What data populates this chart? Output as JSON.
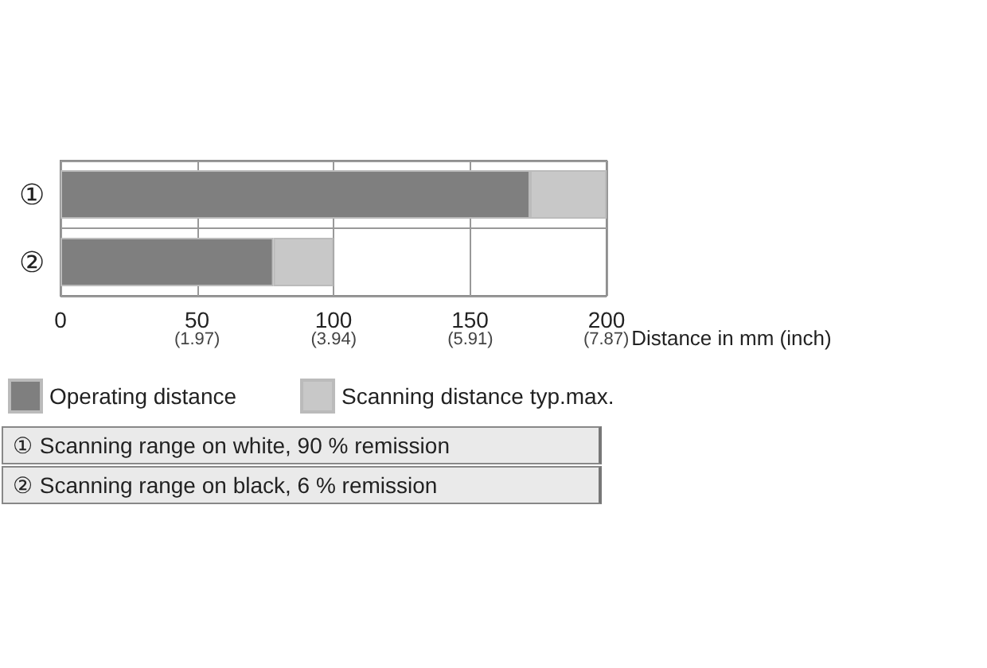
{
  "chart_data": {
    "type": "bar",
    "orientation": "horizontal",
    "stacked": true,
    "categories": [
      "①",
      "②"
    ],
    "series": [
      {
        "name": "Operating distance",
        "color": "#7f7f7f",
        "values": [
          172,
          78
        ]
      },
      {
        "name": "Scanning distance typ.max.",
        "color": "#c8c8c8",
        "values": [
          28,
          22
        ]
      }
    ],
    "xlim": [
      0,
      200
    ],
    "xticks": [
      0,
      50,
      100,
      150,
      200
    ],
    "x2lim": [
      0,
      7.874
    ],
    "x2ticks": [
      {
        "value": 1.97,
        "label": "(1.97)"
      },
      {
        "value": 3.94,
        "label": "(3.94)"
      },
      {
        "value": 5.91,
        "label": "(5.91)"
      },
      {
        "value": 7.87,
        "label": "(7.87)"
      }
    ],
    "xlabel": "Distance in mm (inch)",
    "grid": "x",
    "legend": "bottom left",
    "annotations": [
      "① Scanning range on white, 90 % remission",
      "② Scanning range on black, 6 % remission"
    ]
  }
}
